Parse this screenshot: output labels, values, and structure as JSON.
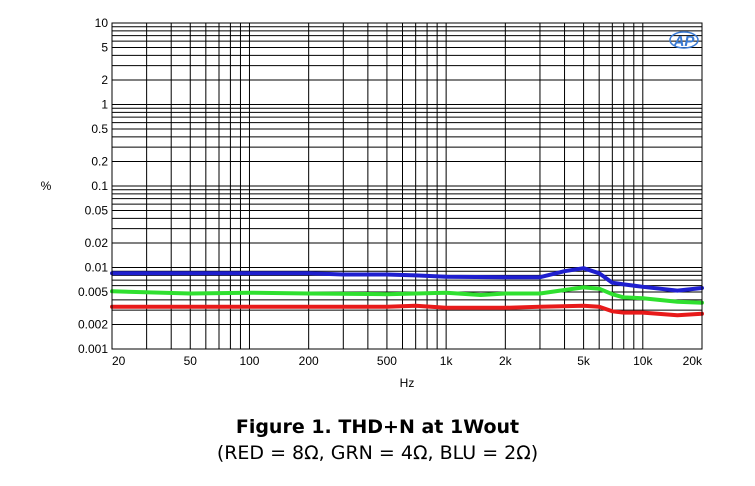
{
  "chart_data": {
    "type": "line",
    "title": "Figure 1. THD+N at 1Wout",
    "subtitle": "(RED = 8Ω, GRN = 4Ω, BLU = 2Ω)",
    "xlabel": "Hz",
    "ylabel": "%",
    "xscale": "log",
    "yscale": "log",
    "xlim": [
      20,
      20000
    ],
    "ylim": [
      0.001,
      10
    ],
    "grid": true,
    "x_ticks": [
      {
        "value": 20,
        "label": "20"
      },
      {
        "value": 50,
        "label": "50"
      },
      {
        "value": 100,
        "label": "100"
      },
      {
        "value": 200,
        "label": "200"
      },
      {
        "value": 500,
        "label": "500"
      },
      {
        "value": 1000,
        "label": "1k"
      },
      {
        "value": 2000,
        "label": "2k"
      },
      {
        "value": 5000,
        "label": "5k"
      },
      {
        "value": 10000,
        "label": "10k"
      },
      {
        "value": 20000,
        "label": "20k"
      }
    ],
    "y_ticks": [
      {
        "value": 10,
        "label": "10"
      },
      {
        "value": 5,
        "label": "5"
      },
      {
        "value": 2,
        "label": "2"
      },
      {
        "value": 1,
        "label": "1"
      },
      {
        "value": 0.5,
        "label": "0.5"
      },
      {
        "value": 0.2,
        "label": "0.2"
      },
      {
        "value": 0.1,
        "label": "0.1"
      },
      {
        "value": 0.05,
        "label": "0.05"
      },
      {
        "value": 0.02,
        "label": "0.02"
      },
      {
        "value": 0.01,
        "label": "0.01"
      },
      {
        "value": 0.005,
        "label": "0.005"
      },
      {
        "value": 0.002,
        "label": "0.002"
      },
      {
        "value": 0.001,
        "label": "0.001"
      }
    ],
    "logo_text": "AP",
    "series": [
      {
        "color": "#1f1fcf",
        "x": [
          20,
          50,
          100,
          200,
          300,
          500,
          700,
          1000,
          2000,
          3000,
          4000,
          5000,
          6000,
          7000,
          8000,
          10000,
          15000,
          20000
        ],
        "y": [
          0.0085,
          0.0085,
          0.0085,
          0.0085,
          0.0082,
          0.0082,
          0.008,
          0.0077,
          0.0076,
          0.0076,
          0.009,
          0.0098,
          0.0085,
          0.0065,
          0.0062,
          0.0058,
          0.0052,
          0.0056
        ]
      },
      {
        "color": "#2fe02f",
        "x": [
          20,
          50,
          100,
          200,
          500,
          1000,
          1500,
          2000,
          3000,
          4000,
          5000,
          6000,
          7000,
          8000,
          10000,
          15000,
          20000
        ],
        "y": [
          0.0051,
          0.0048,
          0.0049,
          0.0048,
          0.0047,
          0.0049,
          0.0046,
          0.0048,
          0.0048,
          0.0053,
          0.0057,
          0.0055,
          0.0047,
          0.0043,
          0.0042,
          0.0038,
          0.0037
        ]
      },
      {
        "color": "#e81a1a",
        "x": [
          20,
          50,
          100,
          200,
          500,
          700,
          1000,
          2000,
          3000,
          5000,
          6000,
          7000,
          8000,
          10000,
          15000,
          20000
        ],
        "y": [
          0.0033,
          0.0033,
          0.0033,
          0.0033,
          0.0033,
          0.0034,
          0.0032,
          0.0032,
          0.0033,
          0.0034,
          0.0033,
          0.0029,
          0.0028,
          0.0028,
          0.0026,
          0.0027
        ]
      }
    ]
  }
}
